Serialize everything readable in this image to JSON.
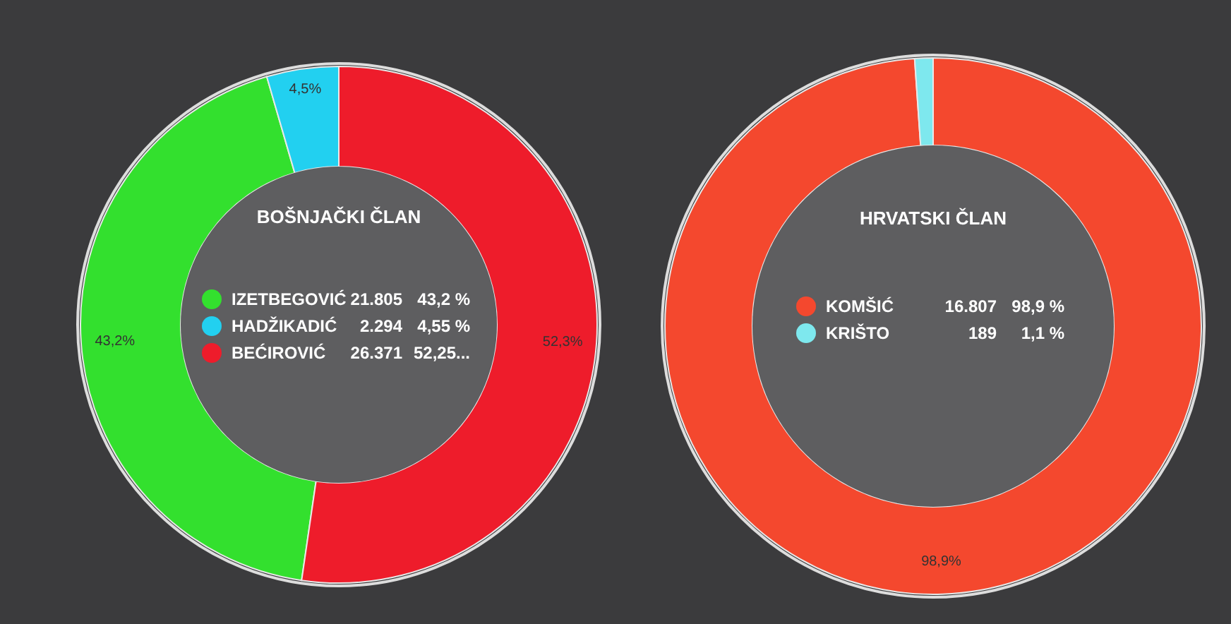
{
  "chart_data": [
    {
      "type": "donut",
      "title": "BOŠNJAČKI ČLAN",
      "categories": [
        "IZETBEGOVIĆ",
        "HADŽIKADIĆ",
        "BEĆIROVIĆ"
      ],
      "values": [
        43.2,
        4.5,
        52.3
      ],
      "colors": [
        "#33e02e",
        "#22d0f0",
        "#ee1c2b"
      ],
      "value_labels": [
        "43,2%",
        "4,5%",
        "52,3%"
      ],
      "legend": "left",
      "annotations": [
        "21.805",
        "43,2 %",
        "2.294",
        "4,55 %",
        "26.371",
        "52,25..."
      ]
    },
    {
      "type": "donut",
      "title": "HRVATSKI ČLAN",
      "categories": [
        "KOMŠIĆ",
        "KRIŠTO"
      ],
      "values": [
        98.9,
        1.1
      ],
      "colors": [
        "#f4482e",
        "#7ee8ee"
      ],
      "value_labels": [
        "98,9%",
        null
      ],
      "legend": "left",
      "annotations": [
        "16.807",
        "98,9 %",
        "189",
        "1,1 %"
      ]
    }
  ]
}
